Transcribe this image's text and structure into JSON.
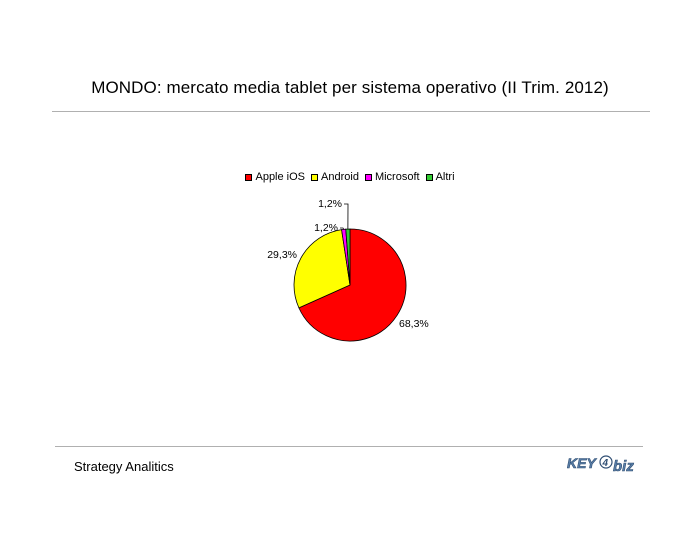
{
  "title": "MONDO: mercato media tablet per sistema operativo (II Trim. 2012)",
  "source": "Strategy Analitics",
  "logo": {
    "text_left": "KEY",
    "text_right": "biz",
    "digit": "4"
  },
  "colors": {
    "apple": "#FF0000",
    "android": "#FFFF00",
    "microsoft": "#FF00FF",
    "altri": "#33CC33",
    "rule": "#b0b0b0"
  },
  "chart_data": {
    "type": "pie",
    "title": "MONDO: mercato media tablet per sistema operativo (II Trim. 2012)",
    "legend_position": "top",
    "slices": [
      {
        "name": "Apple iOS",
        "value": 68.3,
        "label": "68,3%",
        "color": "#FF0000"
      },
      {
        "name": "Android",
        "value": 29.3,
        "label": "29,3%",
        "color": "#FFFF00"
      },
      {
        "name": "Microsoft",
        "value": 1.2,
        "label": "1,2%",
        "color": "#FF00FF"
      },
      {
        "name": "Altri",
        "value": 1.2,
        "label": "1,2%",
        "color": "#33CC33"
      }
    ]
  }
}
